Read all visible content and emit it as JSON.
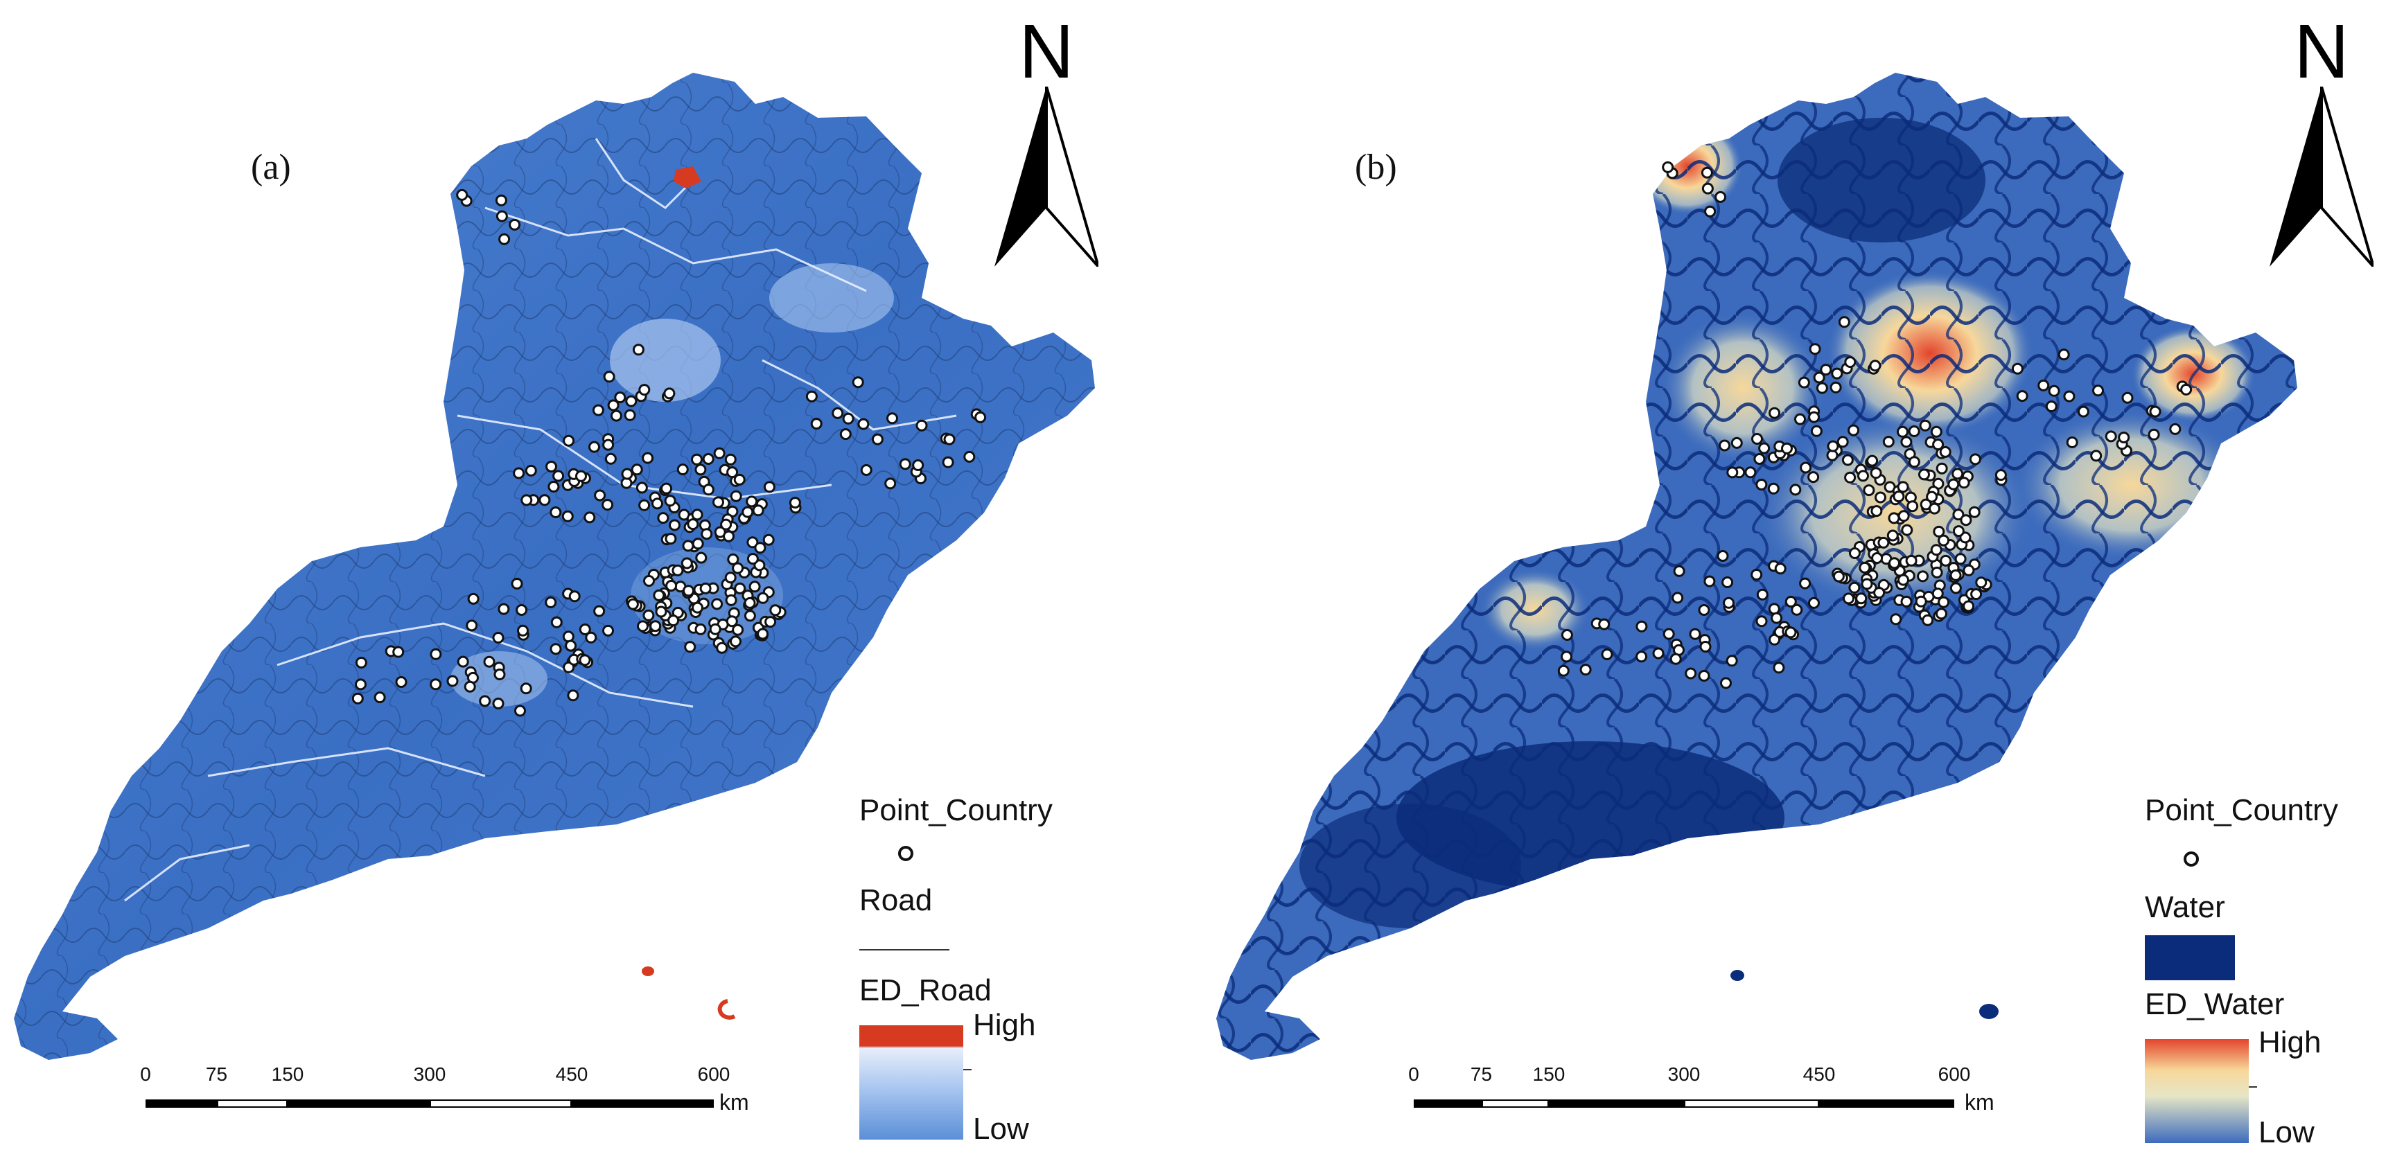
{
  "colors": {
    "road_ramp": [
      "#5a8fd8",
      "#a9c6f0",
      "#e7eefb",
      "#d63a20"
    ],
    "water_ramp": [
      "#3c6bbd",
      "#e6e6c6",
      "#f7d79a",
      "#e3452c"
    ],
    "road_base": "#3a6fc4",
    "water_base": "#0b2c7a",
    "accent_red": "#d63a20",
    "point_fill": "#ffffff",
    "point_stroke": "#111111"
  },
  "panel_a": {
    "label": "(a)",
    "north": "N",
    "legend": {
      "points_title": "Point_Country",
      "line_title": "Road",
      "ramp_title": "ED_Road",
      "high": "High",
      "low": "Low"
    },
    "scalebar": {
      "ticks": [
        "0",
        "75",
        "150",
        "300",
        "450",
        "600"
      ],
      "unit": "km"
    }
  },
  "panel_b": {
    "label": "(b)",
    "north": "N",
    "legend": {
      "points_title": "Point_Country",
      "fill_title": "Water",
      "ramp_title": "ED_Water",
      "high": "High",
      "low": "Low"
    },
    "scalebar": {
      "ticks": [
        "0",
        "75",
        "150",
        "300",
        "450",
        "600"
      ],
      "unit": "km"
    }
  }
}
